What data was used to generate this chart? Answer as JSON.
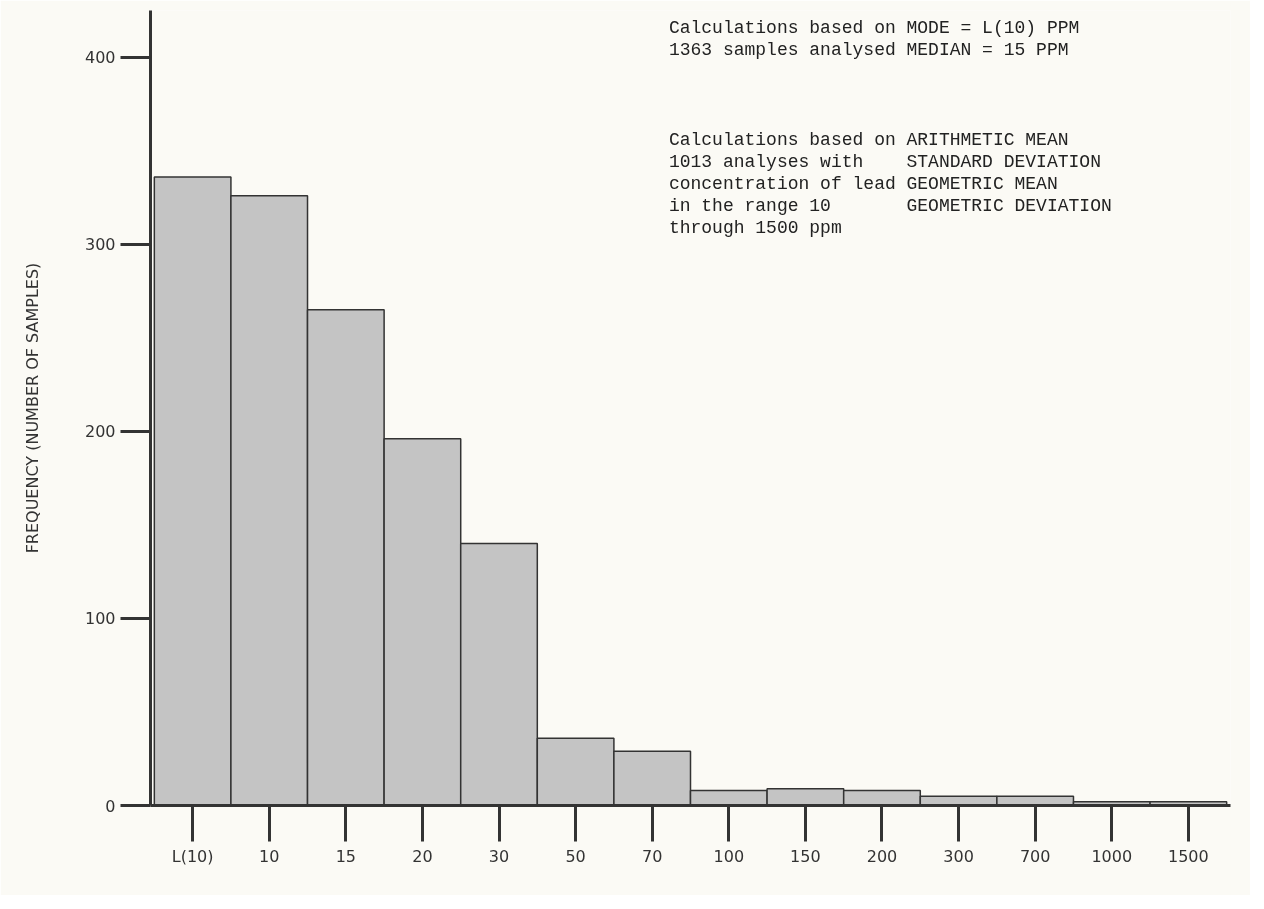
{
  "chart_data": {
    "type": "bar",
    "ylabel": "FREQUENCY (NUMBER OF SAMPLES)",
    "categories": [
      "L(10)",
      "10",
      "15",
      "20",
      "30",
      "50",
      "70",
      "100",
      "150",
      "200",
      "300",
      "700",
      "1000",
      "1500"
    ],
    "values": [
      336,
      326,
      265,
      196,
      140,
      36,
      29,
      8,
      9,
      8,
      5,
      5,
      2,
      2
    ],
    "color": "#c4c4c4",
    "ylim": [
      0,
      425
    ],
    "yticks": [
      0,
      100,
      200,
      300,
      400
    ],
    "grid": false,
    "annotations": [
      "Calculations based on\n1363 samples analysed",
      "  MODE = L(10) PPM\nMEDIAN =   15  PPM",
      "Calculations based on\n1013 analyses with\nconcentration of lead\nin the range 10\nthrough 1500 ppm",
      "ARITHMETIC MEAN\nSTANDARD DEVIATION\nGEOMETRIC MEAN\nGEOMETRIC DEVIATION"
    ]
  }
}
